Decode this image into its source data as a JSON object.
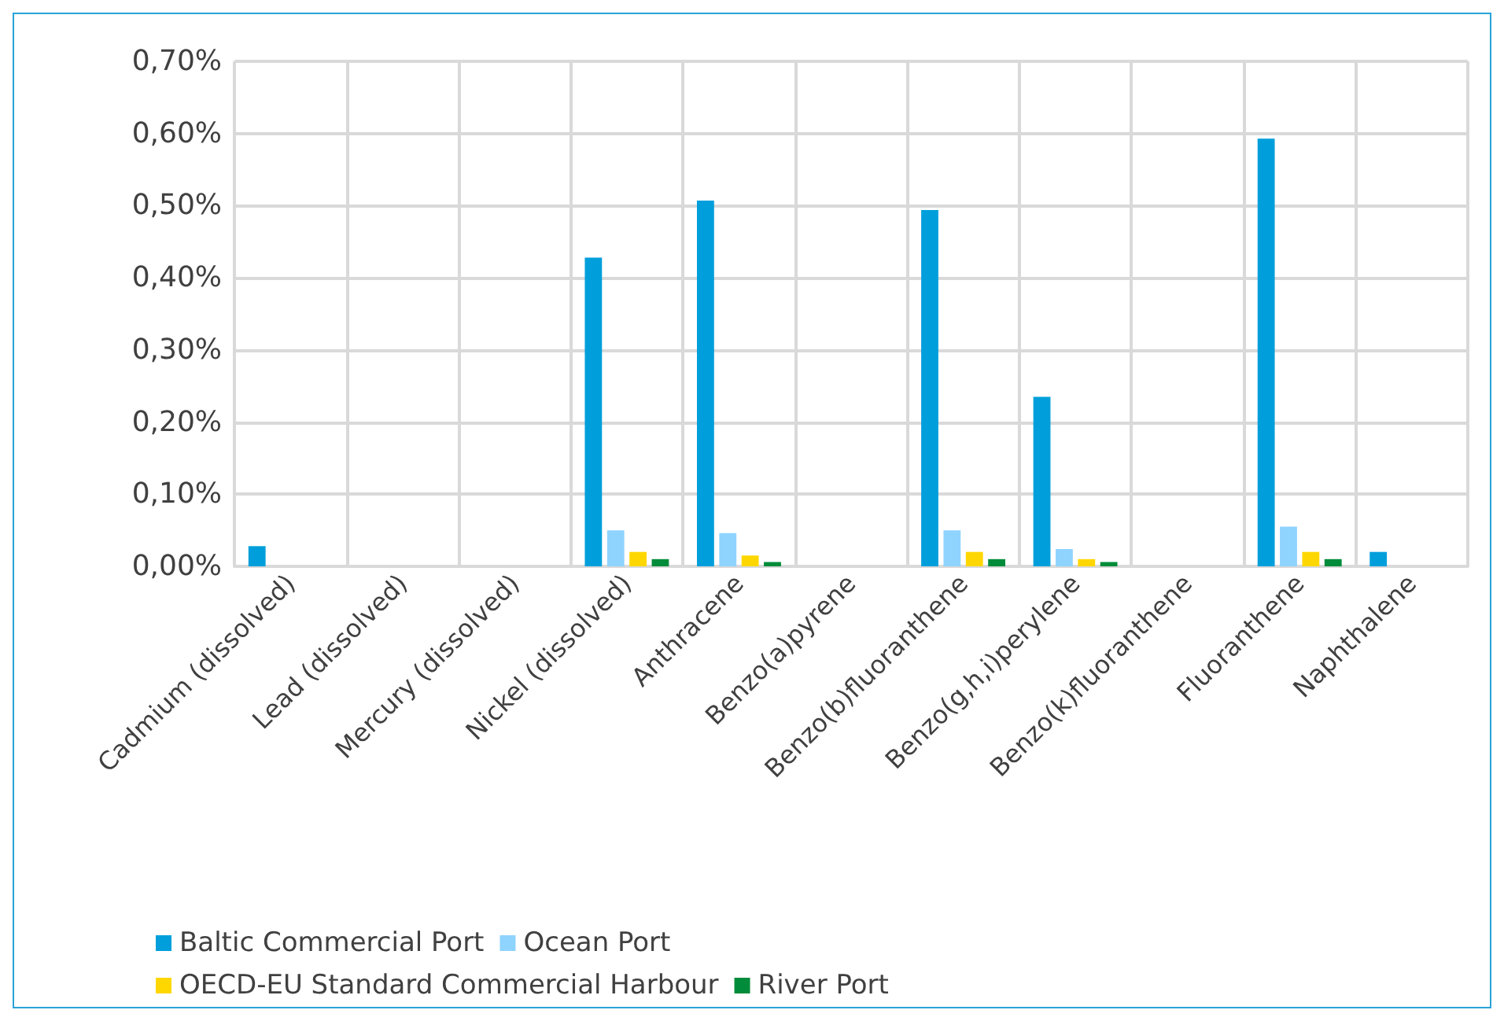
{
  "chart_data": {
    "type": "bar",
    "categories": [
      "Cadmium (dissolved)",
      "Lead (dissolved)",
      "Mercury (dissolved)",
      "Nickel (dissolved)",
      "Anthracene",
      "Benzo(a)pyrene",
      "Benzo(b)fluoranthene",
      "Benzo(g,h,i)perylene",
      "Benzo(k)fluoranthene",
      "Fluoranthene",
      "Naphthalene"
    ],
    "series": [
      {
        "name": "Baltic Commercial Port",
        "color": "#009fdb",
        "values": [
          0.028,
          0,
          0,
          0.428,
          0.507,
          0,
          0.494,
          0.235,
          0,
          0.593,
          0.02
        ]
      },
      {
        "name": "Ocean Port",
        "color": "#8fd3ff",
        "values": [
          0,
          0,
          0,
          0.05,
          0.046,
          0,
          0.05,
          0.024,
          0,
          0.055,
          0
        ]
      },
      {
        "name": "OECD-EU Standard Commercial Harbour",
        "color": "#ffd700",
        "values": [
          0,
          0,
          0,
          0.02,
          0.015,
          0,
          0.02,
          0.01,
          0,
          0.02,
          0
        ]
      },
      {
        "name": "River Port",
        "color": "#008c3a",
        "values": [
          0,
          0,
          0,
          0.01,
          0.006,
          0,
          0.01,
          0.006,
          0,
          0.01,
          0
        ]
      }
    ],
    "ylim": [
      0,
      0.7
    ],
    "yticks": [
      {
        "value": 0,
        "label": "0,00%"
      },
      {
        "value": 0.1,
        "label": "0,10%"
      },
      {
        "value": 0.2,
        "label": "0,20%"
      },
      {
        "value": 0.3,
        "label": "0,30%"
      },
      {
        "value": 0.4,
        "label": "0,40%"
      },
      {
        "value": 0.5,
        "label": "0,50%"
      },
      {
        "value": 0.6,
        "label": "0,60%"
      },
      {
        "value": 0.7,
        "label": "0,70%"
      }
    ],
    "grid": true,
    "legend": "bottom"
  }
}
